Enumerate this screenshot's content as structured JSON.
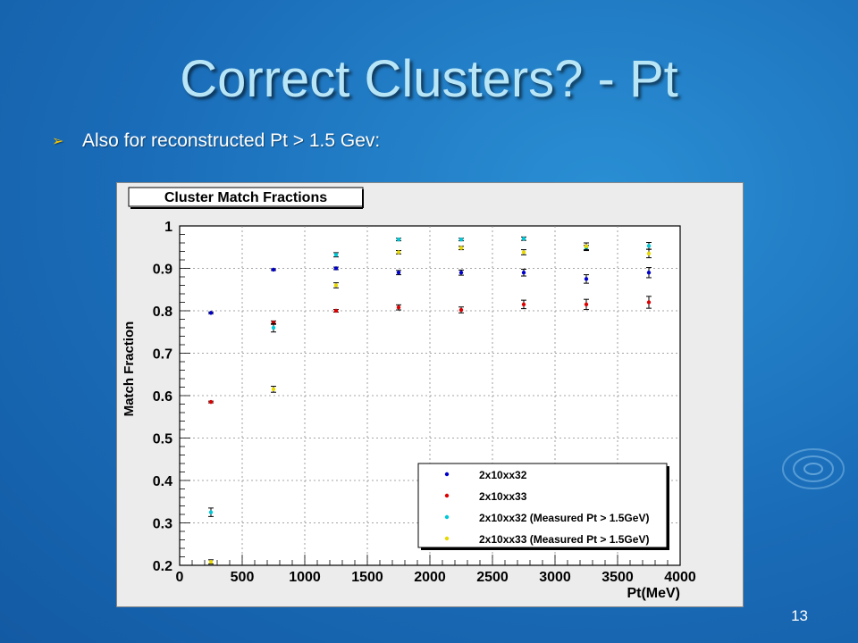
{
  "slide": {
    "title": "Correct Clusters? - Pt",
    "bullet": "Also for reconstructed Pt > 1.5 Gev:",
    "number": "13"
  },
  "colors": {
    "background": "#1a6cb8",
    "title": "#b9e6f7",
    "bullet_icon": "#f5c400"
  },
  "chart_data": {
    "type": "scatter",
    "title": "Cluster Match Fractions",
    "xlabel": "Pt(MeV)",
    "ylabel": "Match Fraction",
    "xlim": [
      0,
      4000
    ],
    "ylim": [
      0.2,
      1.0
    ],
    "xticks": [
      0,
      500,
      1000,
      1500,
      2000,
      2500,
      3000,
      3500,
      4000
    ],
    "yticks": [
      0.2,
      0.3,
      0.4,
      0.5,
      0.6,
      0.7,
      0.8,
      0.9,
      1.0
    ],
    "grid": true,
    "legend_position": "bottom-right",
    "series": [
      {
        "name": "2x10xx32",
        "color": "#0000cc",
        "x": [
          250,
          750,
          1250,
          1750,
          2250,
          2750,
          3250,
          3750
        ],
        "y": [
          0.795,
          0.897,
          0.9,
          0.89,
          0.89,
          0.89,
          0.875,
          0.89
        ],
        "err": [
          0.002,
          0.002,
          0.003,
          0.005,
          0.006,
          0.008,
          0.01,
          0.012
        ]
      },
      {
        "name": "2x10xx33",
        "color": "#dd0000",
        "x": [
          250,
          750,
          1250,
          1750,
          2250,
          2750,
          3250,
          3750
        ],
        "y": [
          0.585,
          0.772,
          0.8,
          0.808,
          0.802,
          0.815,
          0.815,
          0.82
        ],
        "err": [
          0.002,
          0.004,
          0.003,
          0.006,
          0.007,
          0.01,
          0.012,
          0.014
        ]
      },
      {
        "name": "2x10xx32 (Measured Pt > 1.5GeV)",
        "color": "#00c8d8",
        "x": [
          250,
          750,
          1250,
          1750,
          2250,
          2750,
          3250,
          3750
        ],
        "y": [
          0.325,
          0.76,
          0.932,
          0.968,
          0.968,
          0.97,
          0.948,
          0.953
        ],
        "err": [
          0.01,
          0.01,
          0.005,
          0.003,
          0.003,
          0.004,
          0.006,
          0.008
        ]
      },
      {
        "name": "2x10xx33 (Measured Pt > 1.5GeV)",
        "color": "#e8d800",
        "x": [
          250,
          750,
          1250,
          1750,
          2250,
          2750,
          3250,
          3750
        ],
        "y": [
          0.208,
          0.615,
          0.86,
          0.938,
          0.948,
          0.938,
          0.952,
          0.935
        ],
        "err": [
          0.005,
          0.007,
          0.006,
          0.004,
          0.004,
          0.006,
          0.008,
          0.01
        ]
      }
    ]
  }
}
